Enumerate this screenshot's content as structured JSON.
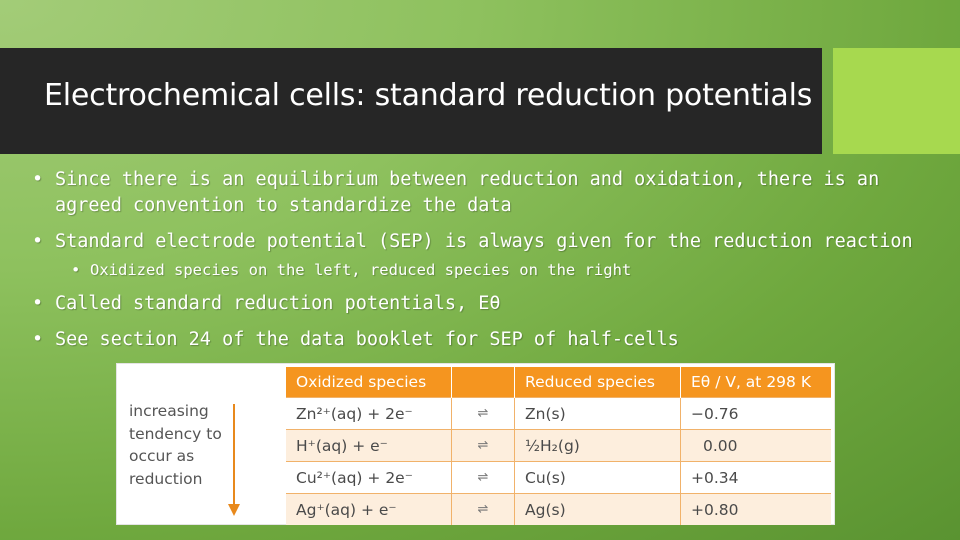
{
  "slide": {
    "title": "Electrochemical cells: standard reduction potentials",
    "bullets": [
      {
        "line1": "Since there is an equilibrium between reduction and oxidation, there is an",
        "line2": "agreed convention to standardize the data"
      },
      {
        "line1": "Standard electrode potential (SEP) is always given for the reduction reaction"
      },
      {
        "line1": "Oxidized species on the left, reduced species on the right"
      },
      {
        "line1": "Called standard reduction potentials, Eθ"
      },
      {
        "line1": "See section 24 of the data booklet for SEP of half-cells"
      }
    ],
    "bullet_marker": "•"
  },
  "table": {
    "side_label": "increasing tendency to occur as reduction",
    "headers": [
      "Oxidized species",
      "",
      "Reduced species",
      "Eθ / V, at 298 K"
    ],
    "equilibrium_symbol": "⇌",
    "rows": [
      {
        "oxidized": "Zn²⁺(aq) + 2e⁻",
        "reduced": "Zn(s)",
        "potential": "−0.76"
      },
      {
        "oxidized": "H⁺(aq) + e⁻",
        "reduced": "½H₂(g)",
        "potential": "0.00"
      },
      {
        "oxidized": "Cu²⁺(aq) + 2e⁻",
        "reduced": "Cu(s)",
        "potential": "+0.34"
      },
      {
        "oxidized": "Ag⁺(aq) + e⁻",
        "reduced": "Ag(s)",
        "potential": "+0.80"
      }
    ]
  },
  "colors": {
    "title_bar": "#262626",
    "accent_block": "#a7d94f",
    "table_header": "#f5951f",
    "arrow": "#e8891c"
  }
}
